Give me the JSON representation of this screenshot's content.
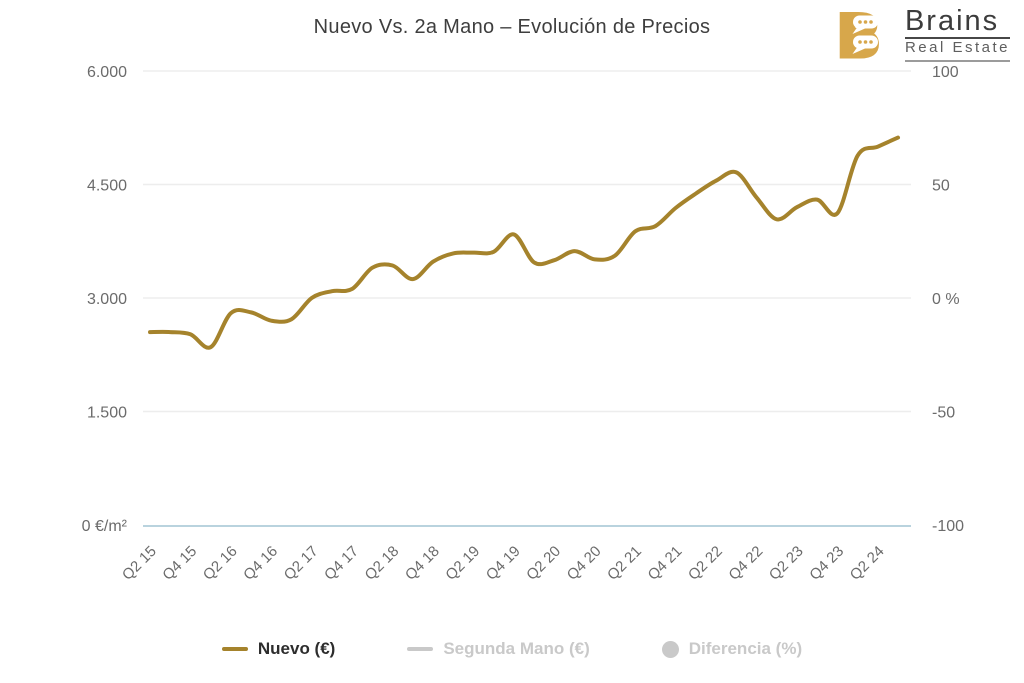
{
  "header": {
    "title": "Nuevo Vs. 2a Mano – Evolución de Precios"
  },
  "logo": {
    "letter": "B",
    "name": "Brains",
    "tagline": "Real Estate",
    "gold": "#d7a74b"
  },
  "chart_data": {
    "type": "line",
    "title": "Nuevo Vs. 2a Mano – Evolución de Precios",
    "categories": [
      "Q2 15",
      "Q3 15",
      "Q4 15",
      "Q1 16",
      "Q2 16",
      "Q3 16",
      "Q4 16",
      "Q1 17",
      "Q2 17",
      "Q3 17",
      "Q4 17",
      "Q1 18",
      "Q2 18",
      "Q3 18",
      "Q4 18",
      "Q1 19",
      "Q2 19",
      "Q3 19",
      "Q4 19",
      "Q1 20",
      "Q2 20",
      "Q3 20",
      "Q4 20",
      "Q1 21",
      "Q2 21",
      "Q3 21",
      "Q4 21",
      "Q1 22",
      "Q2 22",
      "Q3 22",
      "Q4 22",
      "Q1 23",
      "Q2 23",
      "Q3 23",
      "Q4 23",
      "Q1 24",
      "Q2 24",
      "Q3 24"
    ],
    "x_tick_labels": [
      "Q2 15",
      "Q4 15",
      "Q2 16",
      "Q4 16",
      "Q2 17",
      "Q4 17",
      "Q2 18",
      "Q4 18",
      "Q2 19",
      "Q4 19",
      "Q2 20",
      "Q4 20",
      "Q2 21",
      "Q4 21",
      "Q2 22",
      "Q4 22",
      "Q2 23",
      "Q4 23",
      "Q2 24"
    ],
    "x_tick_every": 2,
    "series": [
      {
        "name": "Nuevo (€)",
        "color": "#a5832c",
        "visible": true,
        "unit": "€/m²",
        "values": [
          2550,
          2550,
          2520,
          2350,
          2800,
          2810,
          2700,
          2720,
          3000,
          3090,
          3120,
          3400,
          3430,
          3250,
          3480,
          3590,
          3600,
          3610,
          3840,
          3470,
          3500,
          3620,
          3510,
          3560,
          3880,
          3950,
          4190,
          4380,
          4550,
          4660,
          4330,
          4040,
          4200,
          4300,
          4120,
          4880,
          5000,
          5120
        ]
      },
      {
        "name": "Segunda Mano (€)",
        "color": "#c9c9c9",
        "visible": false,
        "unit": "€/m²",
        "values": []
      },
      {
        "name": "Diferencia (%)",
        "color": "#c9c9c9",
        "visible": false,
        "unit": "%",
        "values": []
      }
    ],
    "y_axis_left": {
      "ticks": [
        "6.000",
        "4.500",
        "3.000",
        "1.500",
        "0 €/m²"
      ],
      "tick_values": [
        6000,
        4500,
        3000,
        1500,
        0
      ],
      "range": [
        0,
        6000
      ]
    },
    "y_axis_right": {
      "ticks": [
        "100",
        "50",
        "0 %",
        "-50",
        "-100"
      ],
      "tick_values": [
        100,
        50,
        0,
        -50,
        -100
      ],
      "range": [
        -100,
        100
      ]
    },
    "grid": "horizontal",
    "legend_position": "bottom"
  },
  "legend": {
    "items": [
      {
        "label": "Nuevo (€)",
        "marker": "line",
        "color": "#a5832c",
        "text_color": "#2d2d2d",
        "active": true
      },
      {
        "label": "Segunda Mano (€)",
        "marker": "line",
        "color": "#c9c9c9",
        "text_color": "#c9c9c9",
        "active": false
      },
      {
        "label": "Diferencia (%)",
        "marker": "circle",
        "color": "#c9c9c9",
        "text_color": "#c9c9c9",
        "active": false
      }
    ]
  },
  "colors": {
    "line": "#a5832c",
    "grid": "#ededed",
    "axis_line": "#b9d3de",
    "axis_label": "#6b6b6b",
    "title_text": "#3e3e3e"
  }
}
